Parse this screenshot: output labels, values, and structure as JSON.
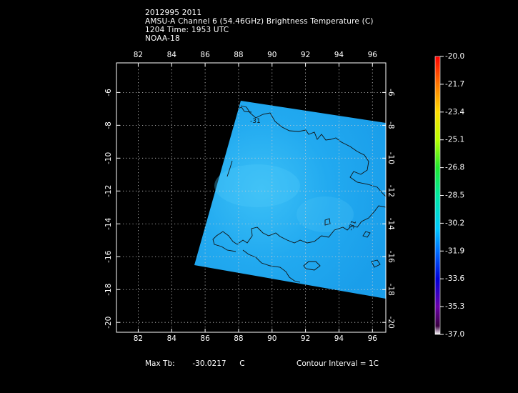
{
  "header": {
    "line1": "2012995 2011",
    "line2": "AMSU-A Channel 6 (54.46GHz) Brightness Temperature (C)",
    "line3": "1204 Time: 1953 UTC",
    "line4": "NOAA-18"
  },
  "map": {
    "lon_ticks": [
      "82",
      "84",
      "86",
      "88",
      "90",
      "92",
      "94",
      "96"
    ],
    "lat_ticks": [
      "-6",
      "-8",
      "-10",
      "-12",
      "-14",
      "-16",
      "-18",
      "-20"
    ],
    "lon_range": [
      80.7,
      96.8
    ],
    "lat_range": [
      -4.2,
      -20.6
    ],
    "contour_label": "-31",
    "swath_color": "#1fa8ee"
  },
  "colorbar": {
    "labels": [
      "-20.0",
      "-21.7",
      "-23.4",
      "-25.1",
      "-26.8",
      "-28.5",
      "-30.2",
      "-31.9",
      "-33.6",
      "-35.3",
      "-37.0"
    ],
    "colors": [
      "#ff0000",
      "#ff7700",
      "#ffdd00",
      "#b8ff00",
      "#20e830",
      "#00e8a0",
      "#00c8ff",
      "#0070ff",
      "#0000d8",
      "#6a00a8",
      "#3a0040",
      "#ffffff"
    ]
  },
  "footer": {
    "max_label": "Max Tb:",
    "max_value": "-30.0217",
    "max_unit": "C",
    "contour_interval": "Contour Interval = 1C"
  }
}
